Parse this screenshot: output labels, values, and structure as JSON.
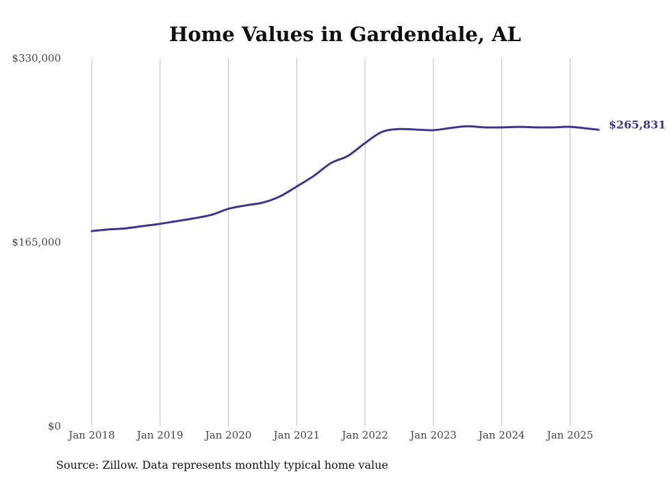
{
  "chart_data": {
    "type": "line",
    "title": "Home Values in Gardendale, AL",
    "xlabel": "",
    "ylabel": "",
    "ylim": [
      0,
      330000
    ],
    "yticks": [
      "$0",
      "$165,000",
      "$330,000"
    ],
    "ytick_values": [
      0,
      165000,
      330000
    ],
    "xticks": [
      "Jan 2018",
      "Jan 2019",
      "Jan 2020",
      "Jan 2021",
      "Jan 2022",
      "Jan 2023",
      "Jan 2024",
      "Jan 2025"
    ],
    "xtick_years": [
      2018,
      2019,
      2020,
      2021,
      2022,
      2023,
      2024,
      2025
    ],
    "xlim": [
      "2018-01",
      "2025-06"
    ],
    "grid": "vertical",
    "line_color": "#3d348b",
    "end_label": "$265,831",
    "series": [
      {
        "x": [
          "2018-01",
          "2018-04",
          "2018-07",
          "2018-10",
          "2019-01",
          "2019-04",
          "2019-07",
          "2019-10",
          "2020-01",
          "2020-04",
          "2020-07",
          "2020-10",
          "2021-01",
          "2021-04",
          "2021-07",
          "2021-10",
          "2022-01",
          "2022-04",
          "2022-07",
          "2022-10",
          "2023-01",
          "2023-04",
          "2023-07",
          "2023-10",
          "2024-01",
          "2024-04",
          "2024-07",
          "2024-10",
          "2025-01",
          "2025-04",
          "2025-06"
        ],
        "values": [
          175000,
          176500,
          177500,
          179500,
          181500,
          184000,
          186500,
          189500,
          195000,
          198000,
          200500,
          206000,
          215000,
          224500,
          236000,
          242500,
          254000,
          264000,
          266500,
          266000,
          265500,
          267500,
          269000,
          268000,
          268000,
          268500,
          268000,
          268000,
          268500,
          267000,
          265831
        ]
      }
    ],
    "source": "Source: Zillow. Data represents monthly typical home value"
  }
}
